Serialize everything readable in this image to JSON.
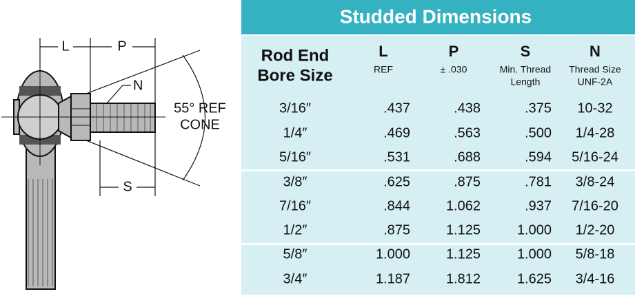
{
  "diagram": {
    "labels": {
      "l": "L",
      "p": "P",
      "n": "N",
      "s": "S",
      "angle": "55° REF",
      "cone": "CONE"
    }
  },
  "table": {
    "title": "Studded Dimensions",
    "columns": [
      {
        "lines": [
          "Rod End",
          "Bore Size"
        ]
      },
      {
        "name": "L",
        "lines": [
          "REF"
        ]
      },
      {
        "name": "P",
        "lines": [
          "± .030"
        ]
      },
      {
        "name": "S",
        "lines": [
          "Min. Thread",
          "Length"
        ]
      },
      {
        "name": "N",
        "lines": [
          "Thread Size",
          "UNF-2A"
        ]
      }
    ],
    "rows": [
      [
        "3/16″",
        ".437",
        ".438",
        ".375",
        "10-32"
      ],
      [
        "1/4″",
        ".469",
        ".563",
        ".500",
        "1/4-28"
      ],
      [
        "5/16″",
        ".531",
        ".688",
        ".594",
        "5/16-24"
      ],
      [
        "3/8″",
        ".625",
        ".875",
        ".781",
        "3/8-24"
      ],
      [
        "7/16″",
        ".844",
        "1.062",
        ".937",
        "7/16-20"
      ],
      [
        "1/2″",
        ".875",
        "1.125",
        "1.000",
        "1/2-20"
      ],
      [
        "5/8″",
        "1.000",
        "1.125",
        "1.000",
        "5/8-18"
      ],
      [
        "3/4″",
        "1.187",
        "1.812",
        "1.625",
        "3/4-16"
      ]
    ]
  }
}
